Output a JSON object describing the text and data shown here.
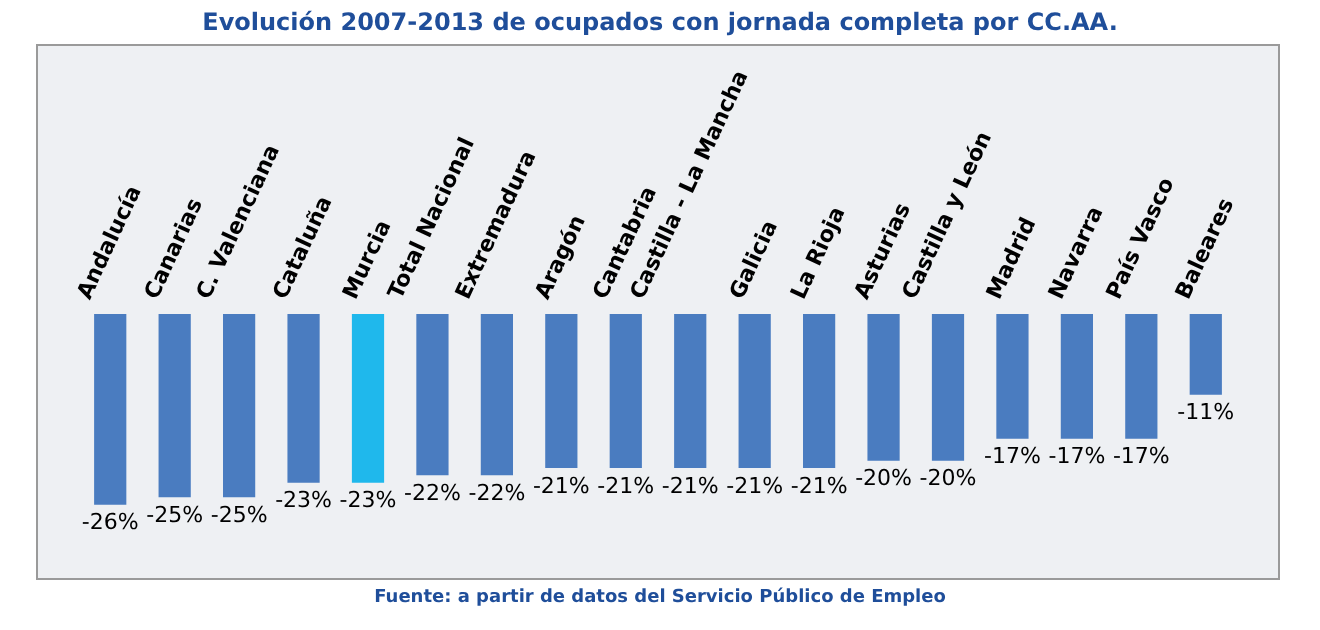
{
  "chart_data": {
    "type": "bar",
    "title": "Evolución 2007-2013 de ocupados con jornada completa por CC.AA.",
    "categories": [
      "Andalucía",
      "Canarias",
      "C. Valenciana",
      "Cataluña",
      "Murcia",
      "Total Nacional",
      "Extremadura",
      "Aragón",
      "Cantabria",
      "Castilla - La Mancha",
      "Galicia",
      "La Rioja",
      "Asturias",
      "Castilla y León",
      "Madrid",
      "Navarra",
      "País Vasco",
      "Baleares"
    ],
    "values": [
      -26,
      -25,
      -25,
      -23,
      -23,
      -22,
      -22,
      -21,
      -21,
      -21,
      -21,
      -21,
      -20,
      -20,
      -17,
      -17,
      -17,
      -11
    ],
    "colors": [
      "#4a7cc0",
      "#4a7cc0",
      "#4a7cc0",
      "#4a7cc0",
      "#1fb8ec",
      "#4a7cc0",
      "#4a7cc0",
      "#4a7cc0",
      "#4a7cc0",
      "#4a7cc0",
      "#4a7cc0",
      "#4a7cc0",
      "#4a7cc0",
      "#4a7cc0",
      "#4a7cc0",
      "#4a7cc0",
      "#4a7cc0",
      "#4a7cc0"
    ],
    "value_labels": [
      "-26%",
      "-25%",
      "-25%",
      "-23%",
      "-23%",
      "-22%",
      "-22%",
      "-21%",
      "-21%",
      "-21%",
      "-21%",
      "-21%",
      "-20%",
      "-20%",
      "-17%",
      "-17%",
      "-17%",
      "-11%"
    ],
    "annotations": [
      "Fuente: a partir de datos del Servicio Público de Empleo"
    ]
  }
}
